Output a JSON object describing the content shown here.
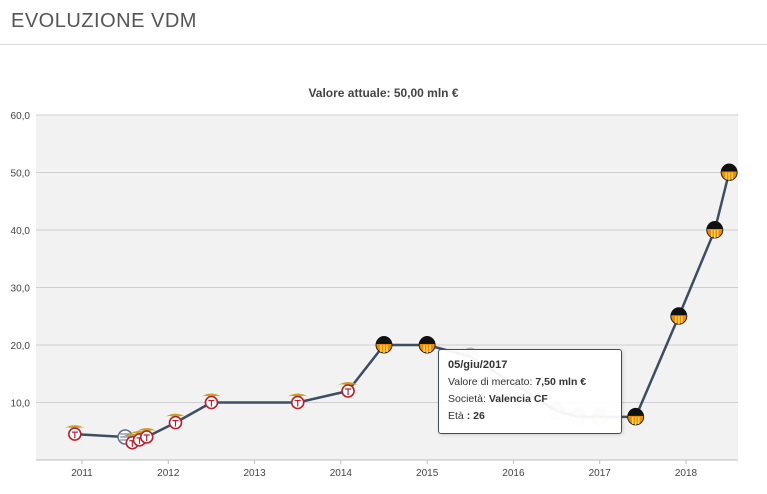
{
  "header": {
    "title": "EVOLUZIONE VDM"
  },
  "chart_data": {
    "type": "line",
    "title": "Valore attuale: 50,00 mln €",
    "xlabel": "",
    "ylabel": "",
    "ylim": [
      0,
      60
    ],
    "y_ticks": [
      "60,0",
      "50,0",
      "40,0",
      "30,0",
      "20,0",
      "10,0"
    ],
    "x_ticks": [
      "2011",
      "2012",
      "2013",
      "2014",
      "2015",
      "2016",
      "2017",
      "2018"
    ],
    "grid": true,
    "line_color": "#3d4e63",
    "plot_background": "#f2f2f2",
    "series": [
      {
        "points": [
          {
            "date": "2010-12",
            "value": 4.5,
            "club": "Benfica"
          },
          {
            "date": "2011-07",
            "value": 4.0,
            "club": "Bologna"
          },
          {
            "date": "2011-08",
            "value": 3.0,
            "club": "Benfica"
          },
          {
            "date": "2011-09",
            "value": 3.5,
            "club": "Benfica"
          },
          {
            "date": "2011-10",
            "value": 4.0,
            "club": "Benfica"
          },
          {
            "date": "2012-02",
            "value": 6.5,
            "club": "Benfica"
          },
          {
            "date": "2012-07",
            "value": 10.0,
            "club": "Benfica"
          },
          {
            "date": "2013-07",
            "value": 10.0,
            "club": "Benfica"
          },
          {
            "date": "2014-02",
            "value": 12.0,
            "club": "Benfica"
          },
          {
            "date": "2014-07",
            "value": 20.0,
            "club": "Valencia CF"
          },
          {
            "date": "2015-01",
            "value": 20.0,
            "club": "Valencia CF"
          },
          {
            "date": "2015-07",
            "value": 18.0,
            "club": "Valencia CF"
          },
          {
            "date": "2016-07",
            "value": 8.5,
            "club": "Valencia CF"
          },
          {
            "date": "2016-10",
            "value": 7.5,
            "club": "Valencia CF"
          },
          {
            "date": "2017-01",
            "value": 7.5,
            "club": "Valencia CF"
          },
          {
            "date": "2017-06",
            "value": 7.5,
            "club": "Valencia CF"
          },
          {
            "date": "2017-12",
            "value": 25.0,
            "club": "Valencia CF"
          },
          {
            "date": "2018-05",
            "value": 40.0,
            "club": "Valencia CF"
          },
          {
            "date": "2018-07",
            "value": 50.0,
            "club": "Valencia CF"
          }
        ]
      }
    ],
    "faded_points": [
      11,
      12,
      13,
      14
    ]
  },
  "tooltip": {
    "date": "05/giu/2017",
    "market_label": "Valore di mercato:",
    "market_value": "7,50 mln €",
    "club_label": "Società:",
    "club_value": "Valencia CF",
    "age_label": "Età",
    "age_value": "26"
  }
}
